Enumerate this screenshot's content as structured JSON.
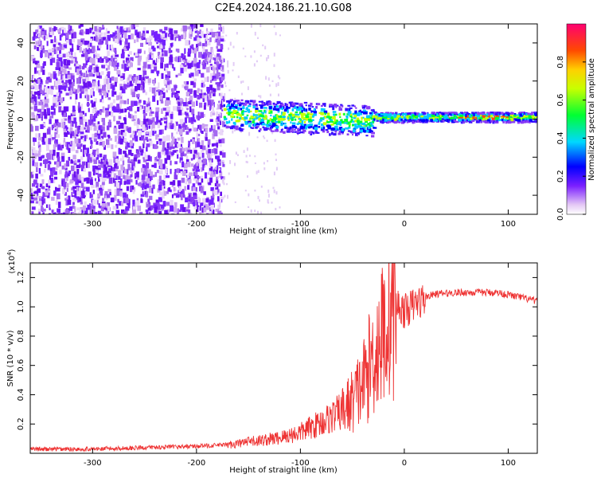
{
  "title": "C2E4.2024.186.21.10.G08",
  "chart_data": [
    {
      "type": "heatmap",
      "xlabel": "Height of straight line (km)",
      "ylabel": "Frequency (Hz)",
      "xlim": [
        -360,
        128
      ],
      "ylim": [
        -50,
        50
      ],
      "xticks": [
        -300,
        -200,
        -100,
        0,
        100
      ],
      "yticks": [
        -40,
        -20,
        0,
        20,
        40
      ],
      "colorbar": {
        "label": "Normalized spectral amplitude",
        "range": [
          0.0,
          1.0
        ],
        "ticks": [
          0.0,
          0.2,
          0.4,
          0.6,
          0.8
        ],
        "tick_labels": [
          "0.0",
          "0.2",
          "0.4",
          "0.6",
          "0.8"
        ]
      },
      "description_points": {
        "noise_region_x": [
          -360,
          -180
        ],
        "signal_band_center_hz": 2,
        "signal_start_x": -175
      }
    },
    {
      "type": "line",
      "xlabel": "Height of straight line (km)",
      "ylabel": "SNR (10 * v/v)",
      "y_multiplier_label": "(x10",
      "y_multiplier_exp": "4",
      "y_multiplier_close": ")",
      "xlim": [
        -360,
        128
      ],
      "ylim": [
        0,
        1.3
      ],
      "xticks": [
        -300,
        -200,
        -100,
        0,
        100
      ],
      "yticks": [
        0.2,
        0.4,
        0.6,
        0.8,
        1.0,
        1.2
      ],
      "ytick_labels": [
        "0.2",
        "0.4",
        "0.6",
        "0.8",
        "1.0",
        "1.2"
      ],
      "color": "#ee3333",
      "series": [
        {
          "name": "SNR",
          "x": [
            -360,
            -300,
            -250,
            -200,
            -170,
            -150,
            -120,
            -100,
            -80,
            -60,
            -50,
            -40,
            -30,
            -20,
            -15,
            -10,
            0,
            10,
            20,
            30,
            50,
            70,
            90,
            110,
            128
          ],
          "values": [
            0.03,
            0.03,
            0.04,
            0.05,
            0.06,
            0.08,
            0.11,
            0.15,
            0.22,
            0.3,
            0.38,
            0.5,
            0.7,
            0.88,
            1.0,
            1.05,
            0.98,
            1.03,
            1.07,
            1.09,
            1.1,
            1.1,
            1.1,
            1.07,
            1.04
          ]
        }
      ]
    }
  ]
}
